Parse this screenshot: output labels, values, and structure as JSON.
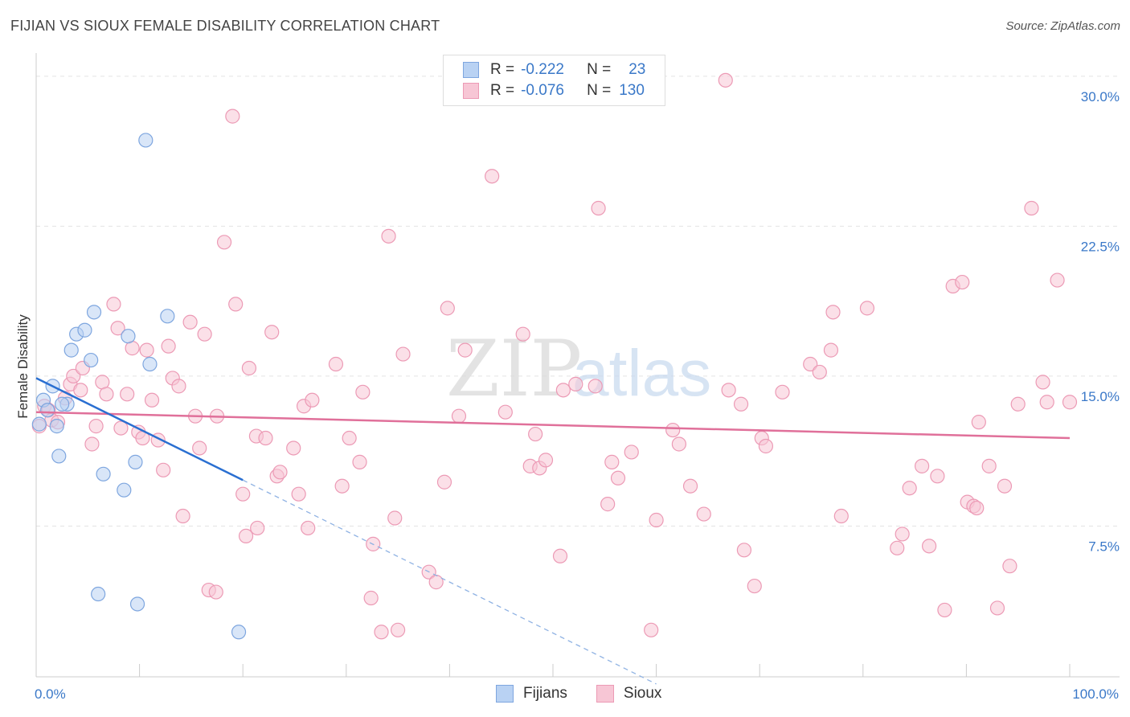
{
  "header": {
    "title": "FIJIAN VS SIOUX FEMALE DISABILITY CORRELATION CHART",
    "source": "Source: ZipAtlas.com"
  },
  "legend": {
    "rows": [
      {
        "r_label": "R =",
        "r_value": "-0.222",
        "n_label": "N =",
        "n_value": "23"
      },
      {
        "r_label": "R =",
        "r_value": "-0.076",
        "n_label": "N =",
        "n_value": "130"
      }
    ]
  },
  "watermark": {
    "zip": "ZIP",
    "atlas": "atlas"
  },
  "colors": {
    "fijians_fill": "#b9d2f3",
    "fijians_stroke": "#7ea6df",
    "fijians_line": "#2a6fd1",
    "sioux_fill": "#f7c6d5",
    "sioux_stroke": "#ec9ab5",
    "sioux_line": "#e0709a",
    "tick_text": "#3a78c8",
    "grid": "#e3e3e3"
  },
  "chart_data": {
    "type": "scatter",
    "title": "FIJIAN VS SIOUX FEMALE DISABILITY CORRELATION CHART",
    "xlabel": "",
    "ylabel": "Female Disability",
    "xlim": [
      0,
      100
    ],
    "ylim": [
      0,
      31
    ],
    "x_tick_labels": [
      "0.0%",
      "100.0%"
    ],
    "y_ticks": [
      7.5,
      15.0,
      22.5,
      30.0
    ],
    "y_tick_labels": [
      "7.5%",
      "15.0%",
      "22.5%",
      "30.0%"
    ],
    "grid": "horizontal dashed",
    "legend_position": "bottom",
    "series": [
      {
        "name": "Fijians",
        "r": -0.222,
        "n": 23,
        "trend": {
          "x0": 0,
          "y0": 14.9,
          "x1": 20,
          "y1": 9.8,
          "dashed_to_x": 60
        },
        "points": [
          [
            0.3,
            12.6
          ],
          [
            0.7,
            13.8
          ],
          [
            1.1,
            13.3
          ],
          [
            1.6,
            14.5
          ],
          [
            2.0,
            12.5
          ],
          [
            3.0,
            13.6
          ],
          [
            2.2,
            11.0
          ],
          [
            3.4,
            16.3
          ],
          [
            3.9,
            17.1
          ],
          [
            4.7,
            17.3
          ],
          [
            5.3,
            15.8
          ],
          [
            5.6,
            18.2
          ],
          [
            6.5,
            10.1
          ],
          [
            8.5,
            9.3
          ],
          [
            8.9,
            17.0
          ],
          [
            9.6,
            10.7
          ],
          [
            10.6,
            26.8
          ],
          [
            11.0,
            15.6
          ],
          [
            12.7,
            18.0
          ],
          [
            6.0,
            4.1
          ],
          [
            9.8,
            3.6
          ],
          [
            19.6,
            2.2
          ],
          [
            2.5,
            13.6
          ]
        ]
      },
      {
        "name": "Sioux",
        "r": -0.076,
        "n": 130,
        "trend": {
          "x0": 0,
          "y0": 13.2,
          "x1": 100,
          "y1": 11.9
        },
        "points": [
          [
            0.3,
            12.5
          ],
          [
            0.8,
            13.5
          ],
          [
            1.2,
            13.3
          ],
          [
            1.5,
            12.8
          ],
          [
            2.1,
            12.7
          ],
          [
            2.8,
            13.9
          ],
          [
            3.3,
            14.6
          ],
          [
            3.6,
            15.0
          ],
          [
            4.5,
            15.4
          ],
          [
            4.3,
            14.3
          ],
          [
            5.4,
            11.6
          ],
          [
            5.8,
            12.5
          ],
          [
            6.4,
            14.7
          ],
          [
            6.8,
            14.1
          ],
          [
            7.5,
            18.6
          ],
          [
            7.9,
            17.4
          ],
          [
            8.2,
            12.4
          ],
          [
            8.8,
            14.1
          ],
          [
            9.3,
            16.4
          ],
          [
            9.9,
            12.2
          ],
          [
            10.3,
            11.9
          ],
          [
            10.7,
            16.3
          ],
          [
            11.2,
            13.8
          ],
          [
            11.8,
            11.8
          ],
          [
            12.3,
            10.3
          ],
          [
            12.8,
            16.5
          ],
          [
            13.2,
            14.9
          ],
          [
            13.8,
            14.5
          ],
          [
            14.2,
            8.0
          ],
          [
            14.9,
            17.7
          ],
          [
            15.4,
            13.0
          ],
          [
            15.8,
            11.4
          ],
          [
            16.3,
            17.1
          ],
          [
            16.7,
            4.3
          ],
          [
            17.4,
            4.2
          ],
          [
            17.5,
            13.0
          ],
          [
            18.2,
            21.7
          ],
          [
            19.0,
            28.0
          ],
          [
            19.3,
            18.6
          ],
          [
            20.0,
            9.1
          ],
          [
            20.3,
            7.0
          ],
          [
            20.6,
            15.4
          ],
          [
            21.3,
            12.0
          ],
          [
            21.4,
            7.4
          ],
          [
            22.2,
            11.9
          ],
          [
            22.8,
            17.2
          ],
          [
            23.3,
            10.0
          ],
          [
            23.6,
            10.2
          ],
          [
            24.9,
            11.4
          ],
          [
            25.4,
            9.1
          ],
          [
            25.9,
            13.5
          ],
          [
            26.3,
            7.4
          ],
          [
            26.7,
            13.8
          ],
          [
            29.0,
            15.6
          ],
          [
            29.6,
            9.5
          ],
          [
            30.3,
            11.9
          ],
          [
            31.3,
            10.7
          ],
          [
            31.6,
            14.2
          ],
          [
            32.4,
            3.9
          ],
          [
            32.6,
            6.6
          ],
          [
            33.4,
            2.2
          ],
          [
            34.1,
            22.0
          ],
          [
            34.7,
            7.9
          ],
          [
            35.0,
            2.3
          ],
          [
            35.5,
            16.1
          ],
          [
            38.0,
            5.2
          ],
          [
            38.7,
            4.7
          ],
          [
            39.5,
            9.7
          ],
          [
            39.8,
            18.4
          ],
          [
            40.9,
            13.0
          ],
          [
            41.5,
            16.3
          ],
          [
            44.1,
            25.0
          ],
          [
            45.4,
            13.2
          ],
          [
            47.1,
            17.1
          ],
          [
            47.8,
            10.5
          ],
          [
            48.3,
            12.1
          ],
          [
            48.7,
            10.4
          ],
          [
            49.3,
            10.8
          ],
          [
            50.7,
            6.0
          ],
          [
            51.0,
            14.3
          ],
          [
            52.2,
            14.6
          ],
          [
            54.1,
            14.5
          ],
          [
            54.4,
            23.4
          ],
          [
            55.3,
            8.6
          ],
          [
            55.7,
            10.7
          ],
          [
            56.3,
            9.9
          ],
          [
            57.6,
            11.2
          ],
          [
            59.5,
            2.3
          ],
          [
            60.0,
            7.8
          ],
          [
            61.6,
            12.3
          ],
          [
            62.2,
            11.6
          ],
          [
            63.3,
            9.5
          ],
          [
            64.6,
            8.1
          ],
          [
            66.7,
            29.8
          ],
          [
            67.0,
            14.3
          ],
          [
            68.2,
            13.6
          ],
          [
            68.5,
            6.3
          ],
          [
            69.5,
            4.5
          ],
          [
            70.2,
            11.9
          ],
          [
            70.6,
            11.5
          ],
          [
            72.2,
            14.2
          ],
          [
            74.9,
            15.6
          ],
          [
            75.8,
            15.2
          ],
          [
            76.9,
            16.3
          ],
          [
            77.1,
            18.2
          ],
          [
            77.9,
            8.0
          ],
          [
            80.4,
            18.4
          ],
          [
            83.3,
            6.4
          ],
          [
            83.8,
            7.1
          ],
          [
            84.5,
            9.4
          ],
          [
            85.7,
            10.5
          ],
          [
            86.4,
            6.5
          ],
          [
            87.2,
            10.0
          ],
          [
            87.9,
            3.3
          ],
          [
            88.7,
            19.5
          ],
          [
            89.6,
            19.7
          ],
          [
            90.1,
            8.7
          ],
          [
            90.7,
            8.5
          ],
          [
            91.0,
            8.4
          ],
          [
            91.2,
            12.7
          ],
          [
            92.2,
            10.5
          ],
          [
            93.7,
            9.5
          ],
          [
            94.2,
            5.5
          ],
          [
            95.0,
            13.6
          ],
          [
            96.3,
            23.4
          ],
          [
            97.4,
            14.7
          ],
          [
            97.8,
            13.7
          ],
          [
            98.8,
            19.8
          ],
          [
            100.0,
            13.7
          ],
          [
            93.0,
            3.4
          ]
        ]
      }
    ]
  }
}
